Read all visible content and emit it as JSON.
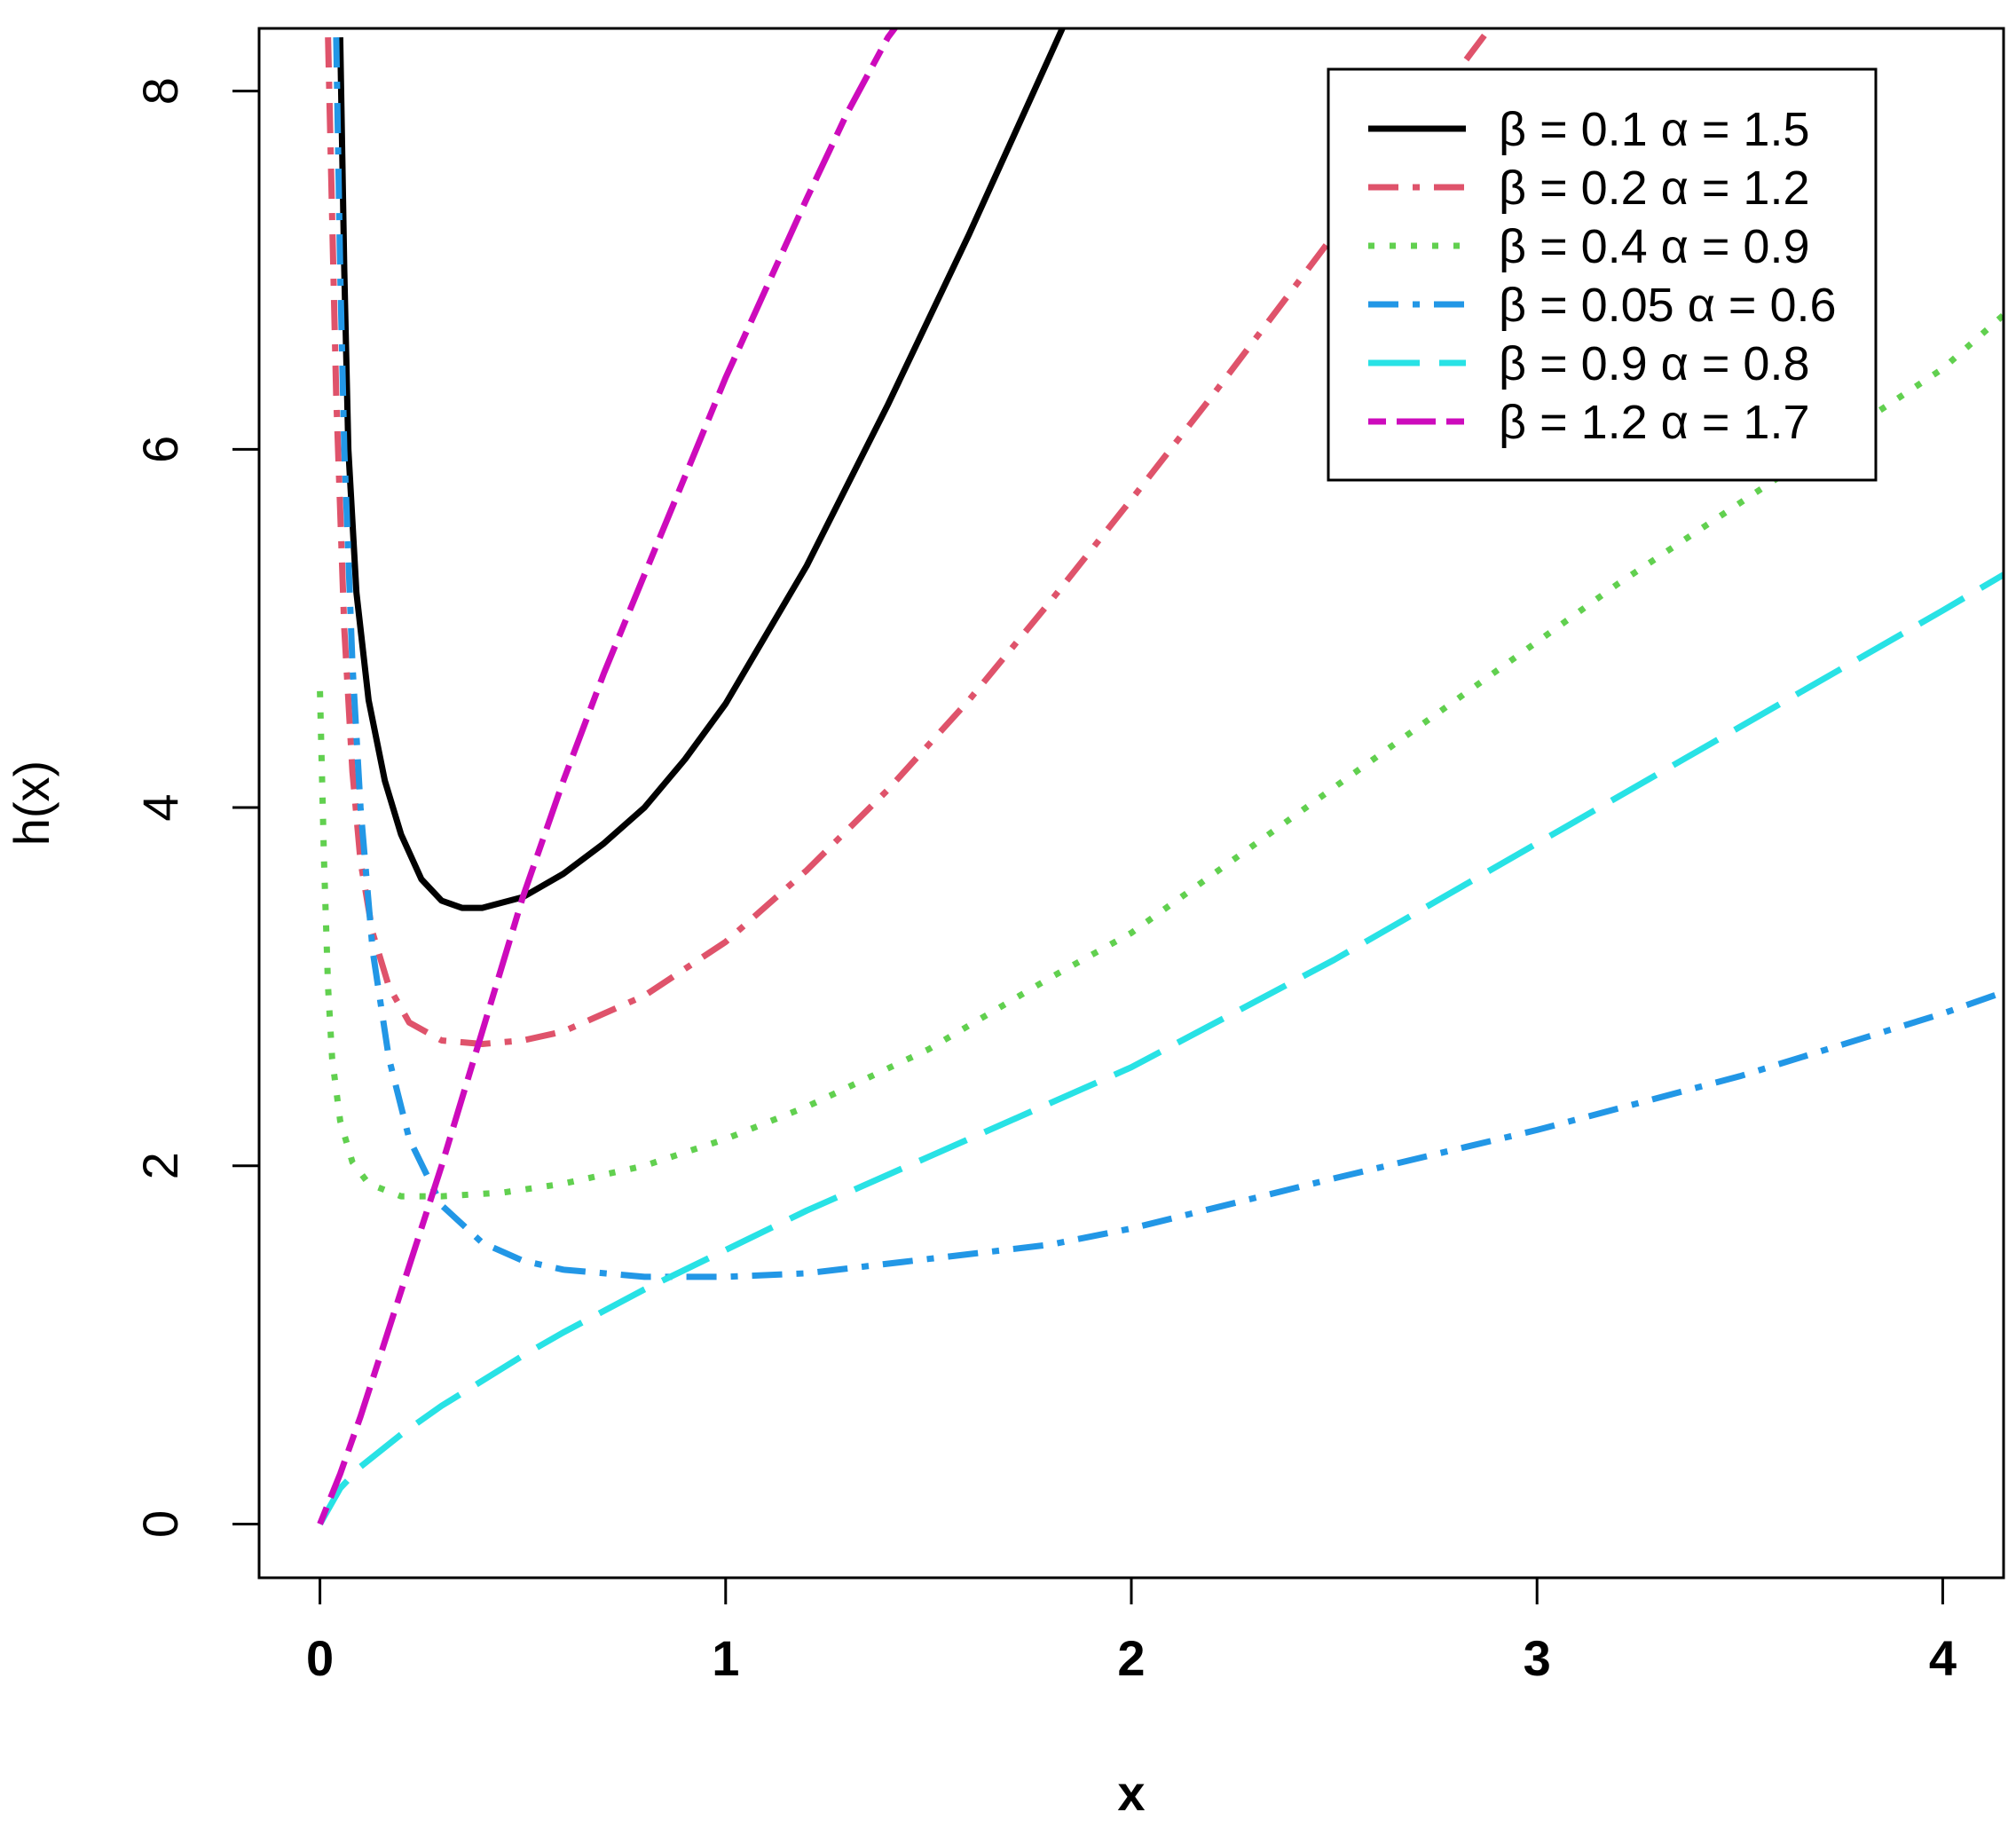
{
  "chart_data": {
    "type": "line",
    "title": "",
    "xlabel": "x",
    "ylabel": "h(x)",
    "xlim": [
      -0.15,
      4.15
    ],
    "ylim": [
      -0.3,
      8.35
    ],
    "xticks": [
      0,
      1,
      2,
      3,
      4
    ],
    "yticks": [
      0,
      2,
      4,
      6,
      8
    ],
    "xtick_labels": [
      "0",
      "1",
      "2",
      "3",
      "4"
    ],
    "ytick_labels": [
      "0",
      "2",
      "4",
      "6",
      "8"
    ],
    "grid": false,
    "legend_position": "top-right",
    "series": [
      {
        "name": "β = 0.1  α = 1.5",
        "color": "#000000",
        "line_style": "solid",
        "x": [
          0.05,
          0.06,
          0.07,
          0.09,
          0.12,
          0.16,
          0.2,
          0.25,
          0.3,
          0.35,
          0.4,
          0.5,
          0.6,
          0.7,
          0.8,
          0.9,
          1.0,
          1.2,
          1.4,
          1.6,
          1.8,
          1.85
        ],
        "y": [
          8.3,
          7.0,
          6.0,
          5.2,
          4.6,
          4.15,
          3.85,
          3.6,
          3.48,
          3.44,
          3.44,
          3.5,
          3.63,
          3.8,
          4.0,
          4.27,
          4.58,
          5.35,
          6.25,
          7.2,
          8.2,
          8.45
        ]
      },
      {
        "name": "β = 0.2  α = 1.2",
        "color": "#DF536B",
        "line_style": "dashdot",
        "x": [
          0.02,
          0.04,
          0.06,
          0.08,
          0.1,
          0.13,
          0.17,
          0.22,
          0.3,
          0.4,
          0.5,
          0.6,
          0.8,
          1.0,
          1.2,
          1.4,
          1.6,
          1.8,
          2.0,
          2.2,
          2.4,
          2.6,
          2.8,
          2.9
        ],
        "y": [
          8.3,
          6.3,
          5.0,
          4.2,
          3.7,
          3.3,
          3.0,
          2.8,
          2.7,
          2.68,
          2.7,
          2.75,
          2.95,
          3.25,
          3.65,
          4.1,
          4.6,
          5.15,
          5.72,
          6.3,
          6.9,
          7.5,
          8.1,
          8.4
        ]
      },
      {
        "name": "β = 0.4  α = 0.9",
        "color": "#61D04F",
        "line_style": "dotted",
        "x": [
          0.0,
          0.01,
          0.02,
          0.03,
          0.05,
          0.08,
          0.12,
          0.2,
          0.3,
          0.45,
          0.6,
          0.8,
          1.0,
          1.2,
          1.5,
          1.8,
          2.0,
          2.4,
          2.8,
          3.2,
          3.6,
          4.0,
          4.15
        ],
        "y": [
          4.65,
          3.7,
          3.0,
          2.6,
          2.25,
          2.02,
          1.9,
          1.83,
          1.83,
          1.85,
          1.9,
          2.0,
          2.15,
          2.33,
          2.65,
          3.05,
          3.3,
          3.95,
          4.6,
          5.25,
          5.85,
          6.45,
          6.75
        ]
      },
      {
        "name": "β = 0.05  α = 0.6",
        "color": "#2297E6",
        "line_style": "dashdot",
        "x": [
          0.04,
          0.05,
          0.06,
          0.08,
          0.1,
          0.13,
          0.17,
          0.22,
          0.3,
          0.4,
          0.5,
          0.6,
          0.8,
          1.0,
          1.2,
          1.5,
          1.8,
          2.0,
          2.5,
          3.0,
          3.5,
          4.0,
          4.15
        ],
        "y": [
          8.3,
          7.0,
          6.0,
          4.8,
          4.0,
          3.2,
          2.6,
          2.15,
          1.78,
          1.57,
          1.47,
          1.42,
          1.38,
          1.38,
          1.4,
          1.48,
          1.56,
          1.65,
          1.93,
          2.2,
          2.5,
          2.85,
          2.97
        ]
      },
      {
        "name": "β = 0.9  α = 0.8",
        "color": "#28E2E5",
        "line_style": "longdash",
        "x": [
          0.0,
          0.05,
          0.1,
          0.2,
          0.3,
          0.4,
          0.5,
          0.6,
          0.8,
          1.0,
          1.2,
          1.5,
          1.8,
          2.0,
          2.5,
          3.0,
          3.5,
          4.0,
          4.15
        ],
        "y": [
          0.0,
          0.2,
          0.32,
          0.5,
          0.66,
          0.8,
          0.94,
          1.07,
          1.31,
          1.53,
          1.75,
          2.05,
          2.35,
          2.55,
          3.15,
          3.8,
          4.45,
          5.1,
          5.3
        ]
      },
      {
        "name": "β = 1.2  α = 1.7",
        "color": "#CD0BBC",
        "line_style": "twodash",
        "x": [
          0.0,
          0.05,
          0.1,
          0.15,
          0.2,
          0.3,
          0.4,
          0.5,
          0.6,
          0.7,
          0.8,
          0.9,
          1.0,
          1.1,
          1.2,
          1.3,
          1.4,
          1.45
        ],
        "y": [
          0.0,
          0.28,
          0.6,
          0.95,
          1.3,
          2.0,
          2.75,
          3.5,
          4.15,
          4.75,
          5.3,
          5.85,
          6.4,
          6.9,
          7.4,
          7.88,
          8.3,
          8.45
        ]
      }
    ]
  }
}
